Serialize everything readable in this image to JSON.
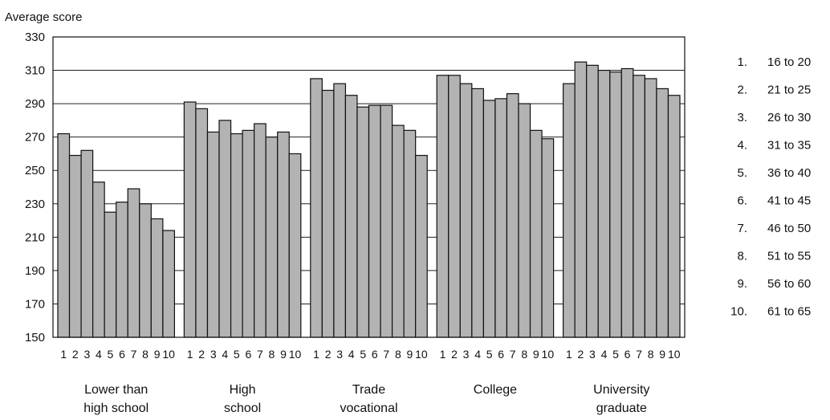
{
  "chart_data": {
    "type": "bar",
    "ylabel": "Average score",
    "ylim": [
      150,
      330
    ],
    "yticks": [
      150,
      170,
      190,
      210,
      230,
      250,
      270,
      290,
      310,
      330
    ],
    "grid": true,
    "legend_position": "right",
    "bar_color": "#b3b3b3",
    "subcategories": [
      "1",
      "2",
      "3",
      "4",
      "5",
      "6",
      "7",
      "8",
      "9",
      "10"
    ],
    "legend": [
      {
        "num": "1.",
        "label": "16 to 20"
      },
      {
        "num": "2.",
        "label": "21 to 25"
      },
      {
        "num": "3.",
        "label": "26 to 30"
      },
      {
        "num": "4.",
        "label": "31 to 35"
      },
      {
        "num": "5.",
        "label": "36 to 40"
      },
      {
        "num": "6.",
        "label": "41 to 45"
      },
      {
        "num": "7.",
        "label": "46 to 50"
      },
      {
        "num": "8.",
        "label": "51 to 55"
      },
      {
        "num": "9.",
        "label": "56 to 60"
      },
      {
        "num": "10.",
        "label": "61 to 65"
      }
    ],
    "groups": [
      {
        "label": [
          "Lower than",
          "high school"
        ],
        "values": [
          272,
          259,
          262,
          243,
          225,
          231,
          239,
          230,
          221,
          214
        ]
      },
      {
        "label": [
          "High",
          "school"
        ],
        "values": [
          291,
          287,
          273,
          280,
          272,
          274,
          278,
          270,
          273,
          260
        ]
      },
      {
        "label": [
          "Trade",
          "vocational"
        ],
        "values": [
          305,
          298,
          302,
          295,
          288,
          289,
          289,
          277,
          274,
          259
        ]
      },
      {
        "label": [
          "College"
        ],
        "values": [
          307,
          307,
          302,
          299,
          292,
          293,
          296,
          290,
          274,
          269
        ]
      },
      {
        "label": [
          "University",
          "graduate"
        ],
        "values": [
          302,
          315,
          313,
          310,
          309,
          311,
          307,
          305,
          299,
          295
        ]
      }
    ]
  }
}
